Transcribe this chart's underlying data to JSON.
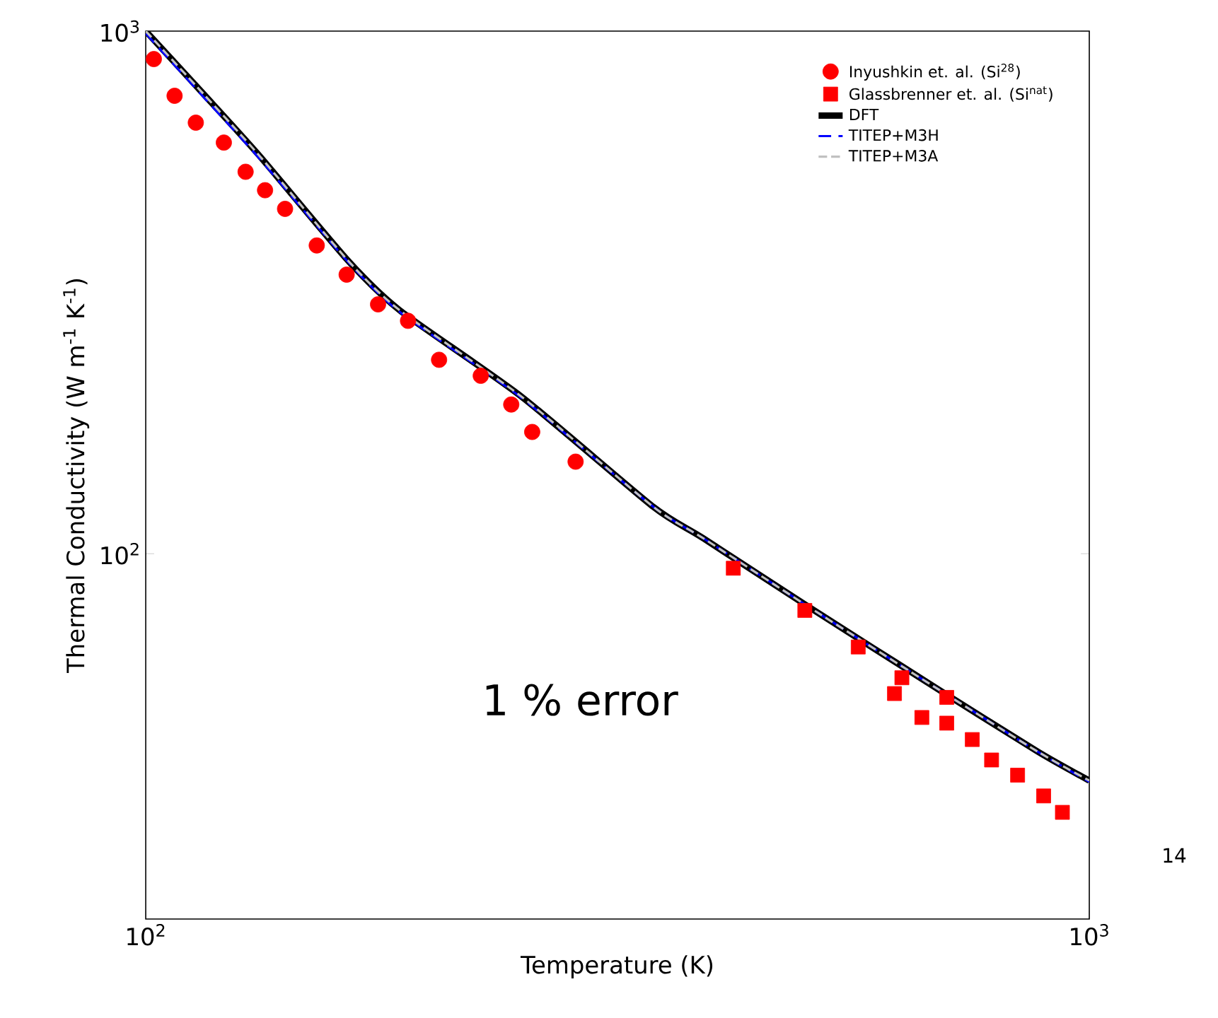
{
  "chart_data": {
    "type": "line",
    "xlabel": "Temperature (K)",
    "ylabel": "Thermal Conductivity (W m$^{-1}$ K$^{-1}$)",
    "log": "xy",
    "xlim": [
      100,
      1000
    ],
    "ylim": [
      20,
      1000
    ],
    "xticks": [
      {
        "value": 100,
        "label": "10$^{2}$"
      },
      {
        "value": 1000,
        "label": "10$^{3}$"
      }
    ],
    "yticks": [
      {
        "value": 100,
        "label": "10$^{2}$"
      },
      {
        "value": 1000,
        "label": "10$^{3}$"
      }
    ],
    "legend": "top right",
    "annotations": [
      "1 % error",
      "14"
    ],
    "series": [
      {
        "name": "Inyushkin et. al. (Si$^{28}$)",
        "type": "scatter",
        "marker": "circle",
        "color": "#ff0000",
        "x": [
          102,
          107.3,
          113,
          121,
          127.6,
          133.8,
          140.5,
          151.8,
          163.3,
          176.3,
          189.7,
          204.6,
          226.5,
          244,
          256.8,
          285.5
        ],
        "values": [
          884,
          752,
          668,
          612,
          538,
          496,
          457,
          389,
          342,
          300,
          279,
          235,
          219,
          193,
          171,
          150
        ]
      },
      {
        "name": "Glassbrenner et. al. (Si$^{nat}$)",
        "type": "scatter",
        "marker": "square",
        "color": "#ff0000",
        "x": [
          419.5,
          499.5,
          569,
          633,
          621.7,
          706.3,
          664.6,
          706.3,
          751.6,
          788,
          839.5,
          894.6,
          936.5
        ],
        "values": [
          93.8,
          77.9,
          66.3,
          57.9,
          54,
          53.1,
          48.6,
          47.4,
          44.1,
          40.3,
          37.7,
          34.4,
          32
        ]
      },
      {
        "name": "DFT",
        "line_style": "solid",
        "color": "#000000",
        "x": [
          100,
          115,
          131.8,
          163.8,
          186,
          250,
          345,
          390,
          505,
          692,
          882,
          1000
        ],
        "values": [
          1000,
          760,
          579,
          364,
          292,
          200,
          123,
          107,
          79,
          55,
          41.8,
          36.8
        ]
      },
      {
        "name": "TITEP+M3H",
        "line_style": "dashed",
        "color": "#0000ff",
        "x": [
          100,
          115,
          131.8,
          163.8,
          186,
          250,
          345,
          390,
          505,
          692,
          882,
          1000
        ],
        "values": [
          990,
          750,
          572,
          362,
          290,
          199,
          123,
          107,
          79,
          55,
          41.8,
          36.6
        ]
      },
      {
        "name": "TITEP+M3A",
        "line_style": "dashed",
        "color": "#c0c0c0",
        "x": [
          100,
          115,
          131.8,
          163.8,
          186,
          250,
          345,
          390,
          505,
          692,
          882,
          1000
        ],
        "values": [
          1000,
          760,
          579,
          364,
          292,
          200,
          123,
          107,
          79,
          55,
          41.8,
          36.8
        ]
      }
    ]
  }
}
